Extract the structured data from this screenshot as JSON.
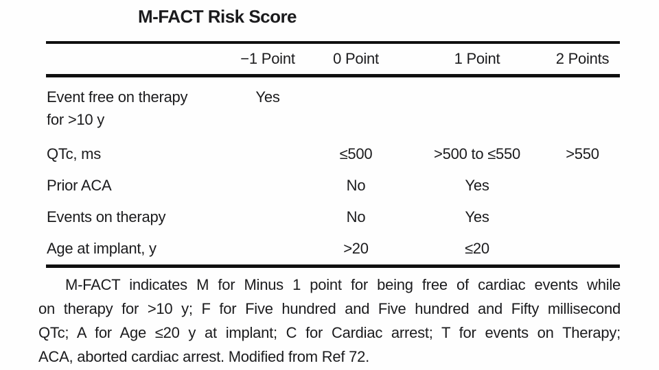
{
  "title": "M-FACT Risk Score",
  "colors": {
    "background": "#fefefe",
    "text": "#1b1b1d",
    "rule": "#101010"
  },
  "table": {
    "columns": [
      "",
      "−1 Point",
      "0 Point",
      "1 Point",
      "2 Points"
    ],
    "rows": [
      {
        "label": "Event free on therapy",
        "label2": "for >10 y",
        "c1": "Yes",
        "c2": "",
        "c3": "",
        "c4": ""
      },
      {
        "label": "QTc, ms",
        "label2": "",
        "c1": "",
        "c2": "≤500",
        "c3": ">500 to ≤550",
        "c4": ">550"
      },
      {
        "label": "Prior ACA",
        "label2": "",
        "c1": "",
        "c2": "No",
        "c3": "Yes",
        "c4": ""
      },
      {
        "label": "Events on therapy",
        "label2": "",
        "c1": "",
        "c2": "No",
        "c3": "Yes",
        "c4": ""
      },
      {
        "label": "Age at implant, y",
        "label2": "",
        "c1": "",
        "c2": ">20",
        "c3": "≤20",
        "c4": ""
      }
    ]
  },
  "footnote": {
    "lines": [
      "M-FACT indicates M for Minus 1 point for being free of cardiac events while",
      "on therapy for >10 y; F for Five hundred and Five hundred and Fifty millisecond",
      "QTc; A for Age ≤20 y at implant; C for Cardiac arrest; T for events on Therapy;",
      "ACA, aborted cardiac arrest. Modified from Ref 72."
    ]
  }
}
